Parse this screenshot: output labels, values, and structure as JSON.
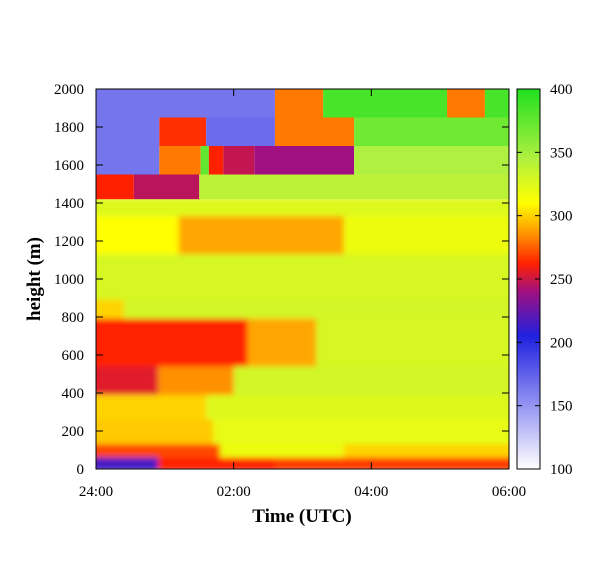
{
  "chart_data": {
    "type": "heatmap",
    "title": "",
    "xlabel": "Time (UTC)",
    "ylabel": "height (m)",
    "x_ticks": [
      "24:00",
      "02:00",
      "04:00",
      "06:00"
    ],
    "x_tick_values": [
      0,
      2,
      4,
      6
    ],
    "xlim": [
      0,
      6
    ],
    "y_ticks": [
      0,
      200,
      400,
      600,
      800,
      1000,
      1200,
      1400,
      1600,
      1800,
      2000
    ],
    "ylim": [
      0,
      2000
    ],
    "colorbar": {
      "ticks": [
        100,
        150,
        200,
        250,
        300,
        350,
        400
      ],
      "range": [
        100,
        400
      ],
      "stops": [
        {
          "value": 100,
          "color": "#ffffff"
        },
        {
          "value": 160,
          "color": "#8080f0"
        },
        {
          "value": 205,
          "color": "#2020e0"
        },
        {
          "value": 240,
          "color": "#a01080"
        },
        {
          "value": 262,
          "color": "#ff2000"
        },
        {
          "value": 285,
          "color": "#ff9000"
        },
        {
          "value": 310,
          "color": "#ffff00"
        },
        {
          "value": 345,
          "color": "#b0f040"
        },
        {
          "value": 400,
          "color": "#20e020"
        }
      ]
    },
    "grid": false,
    "rows": [
      {
        "y0": 1850,
        "y1": 2000,
        "segments": [
          [
            0,
            2.6,
            165
          ],
          [
            2.6,
            3.3,
            280
          ],
          [
            3.3,
            5.1,
            385
          ],
          [
            5.1,
            5.65,
            280
          ],
          [
            5.65,
            6,
            385
          ]
        ]
      },
      {
        "y0": 1700,
        "y1": 1850,
        "segments": [
          [
            0,
            0.92,
            165
          ],
          [
            0.92,
            1.6,
            265
          ],
          [
            1.6,
            2.6,
            170
          ],
          [
            2.6,
            3.75,
            280
          ],
          [
            3.75,
            6,
            370
          ]
        ]
      },
      {
        "y0": 1550,
        "y1": 1700,
        "segments": [
          [
            0,
            0.92,
            165
          ],
          [
            0.92,
            1.52,
            280
          ],
          [
            1.52,
            1.64,
            375
          ],
          [
            1.64,
            1.85,
            262
          ],
          [
            1.85,
            2.3,
            248
          ],
          [
            2.3,
            3.75,
            240
          ],
          [
            3.75,
            6,
            345
          ]
        ]
      },
      {
        "y0": 1420,
        "y1": 1550,
        "segments": [
          [
            0,
            0.55,
            262
          ],
          [
            0.55,
            1.5,
            246
          ],
          [
            1.5,
            6,
            340
          ]
        ]
      },
      {
        "y0": 1320,
        "y1": 1420,
        "segments": [
          [
            0,
            6,
            325
          ]
        ]
      },
      {
        "y0": 1120,
        "y1": 1320,
        "segments": [
          [
            0,
            1.2,
            310
          ],
          [
            1.2,
            3.6,
            290
          ],
          [
            3.6,
            6,
            318
          ]
        ]
      },
      {
        "y0": 880,
        "y1": 1120,
        "segments": [
          [
            0,
            6,
            328
          ]
        ]
      },
      {
        "y0": 780,
        "y1": 880,
        "segments": [
          [
            0,
            0.4,
            300
          ],
          [
            0.4,
            6,
            330
          ]
        ]
      },
      {
        "y0": 530,
        "y1": 780,
        "segments": [
          [
            0,
            2.2,
            262
          ],
          [
            2.2,
            3.2,
            290
          ],
          [
            3.2,
            6,
            328
          ]
        ]
      },
      {
        "y0": 380,
        "y1": 530,
        "segments": [
          [
            0,
            0.9,
            255
          ],
          [
            0.9,
            2.0,
            285
          ],
          [
            2.0,
            6,
            330
          ]
        ]
      },
      {
        "y0": 250,
        "y1": 380,
        "segments": [
          [
            0,
            1.6,
            300
          ],
          [
            1.6,
            6,
            325
          ]
        ]
      },
      {
        "y0": 120,
        "y1": 250,
        "segments": [
          [
            0,
            1.7,
            298
          ],
          [
            1.7,
            6,
            320
          ]
        ]
      },
      {
        "y0": 50,
        "y1": 120,
        "segments": [
          [
            0,
            1.8,
            270
          ],
          [
            1.8,
            3.6,
            318
          ],
          [
            3.6,
            6,
            300
          ]
        ]
      },
      {
        "y0": 0,
        "y1": 50,
        "segments": [
          [
            0,
            0.9,
            215
          ],
          [
            0.9,
            2.6,
            262
          ],
          [
            2.6,
            6,
            268
          ]
        ]
      }
    ]
  }
}
